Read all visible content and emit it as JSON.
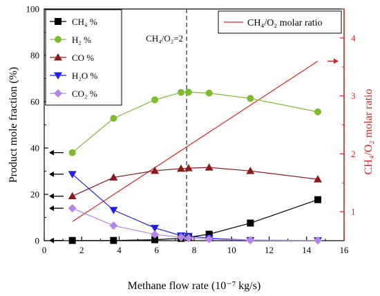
{
  "chart_data": {
    "type": "line",
    "xlabel": "Methane flow rate (10⁻⁷ kg/s)",
    "ylabel": "Product mole fraction (%)",
    "y2label": "CH₄/O₂ molar ratio",
    "annotation": "CH₄/O₂=2",
    "xlim": [
      0,
      16
    ],
    "ylim": [
      0,
      100
    ],
    "y2lim": [
      0.5,
      4.5
    ],
    "x_ticks": [
      "0",
      "2",
      "4",
      "6",
      "8",
      "10",
      "12",
      "14",
      "16"
    ],
    "y_ticks": [
      "0",
      "20",
      "40",
      "60",
      "80",
      "100"
    ],
    "y2_ticks": [
      "1",
      "2",
      "3",
      "4"
    ],
    "x": [
      1.5,
      3.7,
      5.9,
      7.3,
      7.7,
      8.8,
      11.0,
      14.6
    ],
    "series": [
      {
        "name": "CH₄ %",
        "marker": "square",
        "color": "#000000",
        "values": [
          0.1,
          0.1,
          0.4,
          1.0,
          1.5,
          2.8,
          7.6,
          17.7
        ]
      },
      {
        "name": "H₂ %",
        "marker": "circle",
        "color": "#7cbb32",
        "values": [
          38.0,
          52.8,
          60.8,
          64.0,
          64.1,
          63.7,
          61.4,
          55.6
        ]
      },
      {
        "name": "CO %",
        "marker": "triangle-up",
        "color": "#8b1a1a",
        "values": [
          19.2,
          27.3,
          30.2,
          31.1,
          31.3,
          31.6,
          30.1,
          26.5
        ]
      },
      {
        "name": "H₂O %",
        "marker": "triangle-down",
        "color": "#1f1fe6",
        "values": [
          28.7,
          13.2,
          5.5,
          2.2,
          2.0,
          1.1,
          0.2,
          0.1
        ]
      },
      {
        "name": "CO₂ %",
        "marker": "diamond",
        "color": "#b784e8",
        "values": [
          14.0,
          6.5,
          2.7,
          1.5,
          1.1,
          0.7,
          0.2,
          0.1
        ]
      }
    ],
    "secondary_line": {
      "name": "CH₄/O₂ molar ratio",
      "color": "#e02020",
      "x": [
        1.5,
        14.6
      ],
      "values": [
        0.83,
        3.6
      ]
    },
    "vertical_line": {
      "x": 7.6,
      "style": "dashed"
    },
    "legend_left_position": "top-left",
    "legend_right_position": "top-right",
    "grid": false
  }
}
